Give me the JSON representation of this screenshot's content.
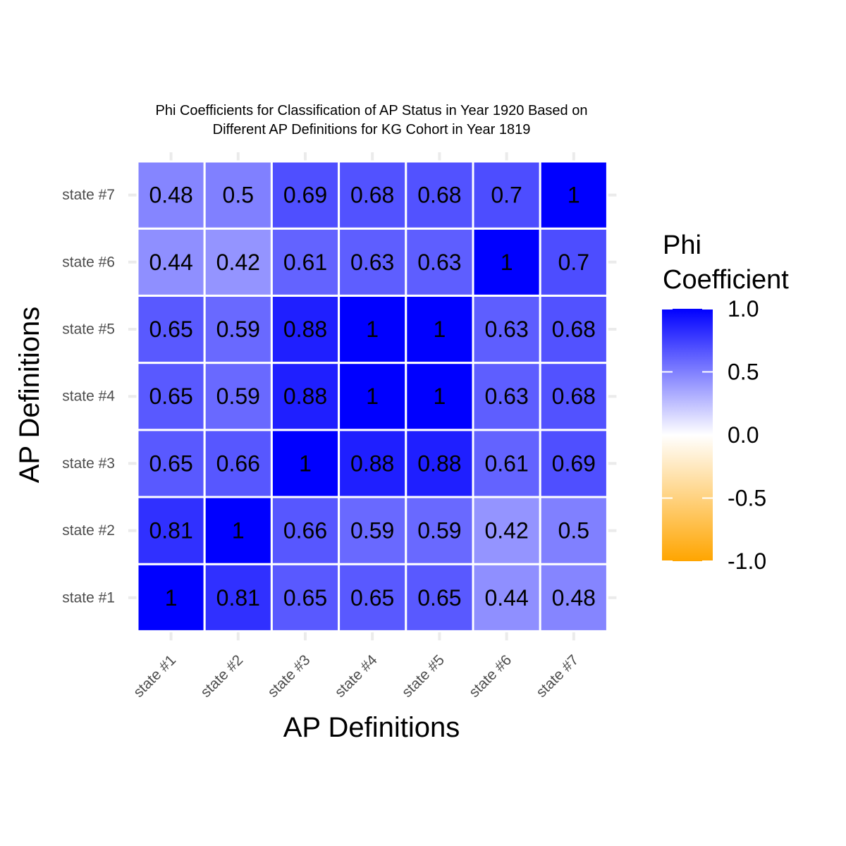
{
  "chart_data": {
    "type": "heatmap",
    "title_lines": [
      "Phi Coefficients for Classification of AP Status in Year 1920 Based on",
      "Different AP Definitions for KG Cohort in Year 1819"
    ],
    "xlabel": "AP Definitions",
    "ylabel": "AP Definitions",
    "x_categories": [
      "state #1",
      "state #2",
      "state #3",
      "state #4",
      "state #5",
      "state #6",
      "state #7"
    ],
    "y_categories": [
      "state #1",
      "state #2",
      "state #3",
      "state #4",
      "state #5",
      "state #6",
      "state #7"
    ],
    "values": [
      [
        1,
        0.81,
        0.65,
        0.65,
        0.65,
        0.44,
        0.48
      ],
      [
        0.81,
        1,
        0.66,
        0.59,
        0.59,
        0.42,
        0.5
      ],
      [
        0.65,
        0.66,
        1,
        0.88,
        0.88,
        0.61,
        0.69
      ],
      [
        0.65,
        0.59,
        0.88,
        1,
        1,
        0.63,
        0.68
      ],
      [
        0.65,
        0.59,
        0.88,
        1,
        1,
        0.63,
        0.68
      ],
      [
        0.44,
        0.42,
        0.61,
        0.63,
        0.63,
        1,
        0.7
      ],
      [
        0.48,
        0.5,
        0.69,
        0.68,
        0.68,
        0.7,
        1
      ]
    ],
    "legend": {
      "title_lines": [
        "Phi",
        "Coefficient"
      ],
      "range": [
        -1,
        1
      ],
      "ticks": [
        1,
        0.5,
        0,
        -0.5,
        -1
      ],
      "tick_labels": [
        "1.0",
        "0.5",
        "0.0",
        "-0.5",
        "-1.0"
      ],
      "colors": {
        "high": "#0000ff",
        "mid": "#ffffff",
        "low": "#ffa500"
      }
    },
    "grid": true,
    "tile_border_color": "#ffffff",
    "grid_color": "#ebebeb"
  }
}
